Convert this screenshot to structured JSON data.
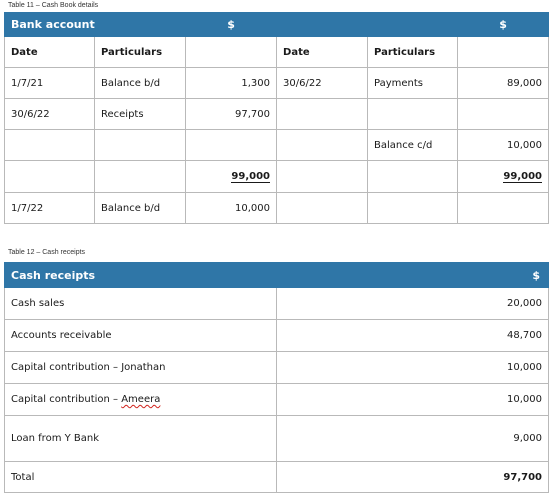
{
  "table11": {
    "caption": "Table 11 – Cash Book details",
    "title": "Bank account",
    "currency_left": "$",
    "currency_right": "$",
    "col_headers": {
      "date": "Date",
      "particulars": "Particulars"
    },
    "rows": [
      {
        "date_l": "1/7/21",
        "part_l": "Balance b/d",
        "amt_l": "1,300",
        "date_r": "30/6/22",
        "part_r": "Payments",
        "amt_r": "89,000"
      },
      {
        "date_l": "30/6/22",
        "part_l": "Receipts",
        "amt_l": "97,700",
        "date_r": "",
        "part_r": "",
        "amt_r": ""
      },
      {
        "date_l": "",
        "part_l": "",
        "amt_l": "",
        "date_r": "",
        "part_r": "Balance c/d",
        "amt_r": "10,000"
      },
      {
        "date_l": "",
        "part_l": "",
        "amt_l": "99,000",
        "date_r": "",
        "part_r": "",
        "amt_r": "99,000"
      },
      {
        "date_l": "1/7/22",
        "part_l": "Balance b/d",
        "amt_l": "10,000",
        "date_r": "",
        "part_r": "",
        "amt_r": ""
      }
    ]
  },
  "table12": {
    "caption": "Table 12 – Cash receipts",
    "title": "Cash receipts",
    "currency": "$",
    "rows": [
      {
        "label": "Cash sales",
        "amount": "20,000"
      },
      {
        "label": "Accounts receivable",
        "amount": "48,700"
      },
      {
        "label": "Capital contribution – Jonathan",
        "amount": "10,000"
      },
      {
        "label_prefix": "Capital contribution – ",
        "label_name": "Ameera",
        "amount": "10,000"
      },
      {
        "label": "Loan from Y Bank",
        "amount": "9,000"
      }
    ],
    "total": {
      "label": "Total",
      "amount": "97,700"
    }
  }
}
